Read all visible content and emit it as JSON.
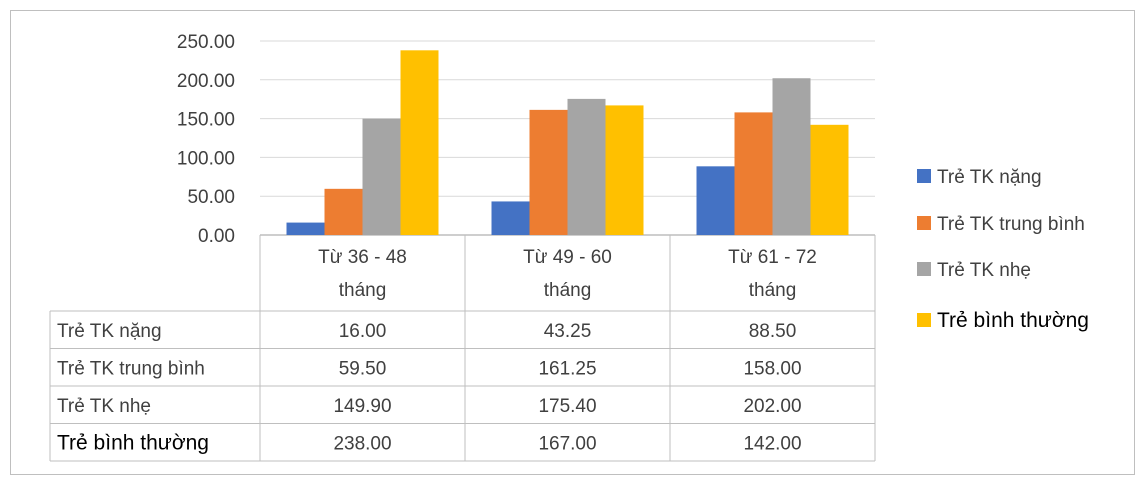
{
  "chart_data": {
    "type": "bar",
    "categories": [
      [
        "Từ 36 - 48",
        "tháng"
      ],
      [
        "Từ 49 - 60",
        "tháng"
      ],
      [
        "Từ 61 - 72",
        "tháng"
      ]
    ],
    "series": [
      {
        "name": "Trẻ TK  nặng",
        "color": "#4472c4",
        "values": [
          16.0,
          43.25,
          88.5
        ],
        "labels": [
          "16.00",
          "43.25",
          "88.50"
        ]
      },
      {
        "name": "Trẻ TK trung bình",
        "color": "#ed7d31",
        "values": [
          59.5,
          161.25,
          158.0
        ],
        "labels": [
          "59.50",
          "161.25",
          "158.00"
        ]
      },
      {
        "name": "Trẻ TK nhẹ",
        "color": "#a5a5a5",
        "values": [
          149.9,
          175.4,
          202.0
        ],
        "labels": [
          "149.90",
          "175.40",
          "202.00"
        ]
      },
      {
        "name": "Trẻ bình thường",
        "color": "#ffc000",
        "values": [
          238.0,
          167.0,
          142.0
        ],
        "labels": [
          "238.00",
          "167.00",
          "142.00"
        ]
      }
    ],
    "yticks": [
      "0.00",
      "50.00",
      "100.00",
      "150.00",
      "200.00",
      "250.00"
    ],
    "ylim": [
      0,
      250
    ],
    "grid": true,
    "legend": "right",
    "data_table": true
  }
}
